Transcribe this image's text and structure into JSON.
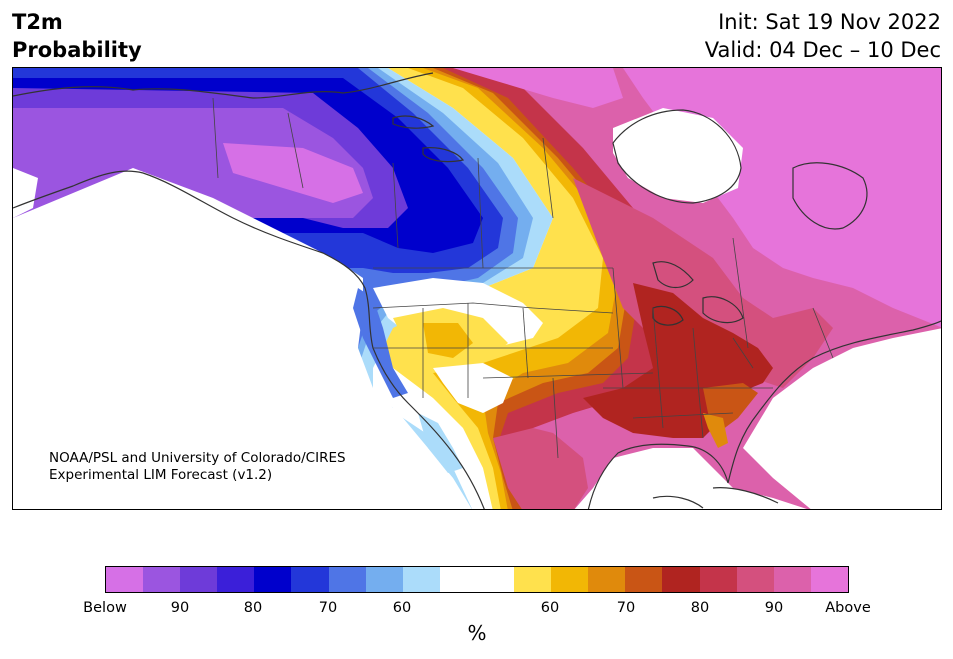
{
  "title": {
    "variable": "T2m",
    "subtitle": "Probability",
    "init": "Init: Sat 19 Nov 2022",
    "valid": "Valid: 04 Dec – 10 Dec"
  },
  "credit": {
    "line1": "NOAA/PSL and University of Colorado/CIRES",
    "line2": "Experimental LIM Forecast (v1.2)"
  },
  "colorbar": {
    "units": "%",
    "colors": [
      "#d670e6",
      "#9b55e0",
      "#6e3bd9",
      "#3b1fd9",
      "#0000cc",
      "#2337d9",
      "#4f75e6",
      "#74aeef",
      "#abdcfa",
      "#ffffff",
      "#ffffff",
      "#ffe14d",
      "#f2b705",
      "#e08a0c",
      "#c95515",
      "#b02420",
      "#c4344a",
      "#d4507e",
      "#dc61ab",
      "#e674da"
    ],
    "ticks": [
      "Below",
      "90",
      "80",
      "70",
      "60",
      "60",
      "70",
      "80",
      "90",
      "Above"
    ]
  },
  "map": {
    "colors": {
      "land": "#ffffff",
      "coast": "#333333",
      "above_strong": "#e674da",
      "above_90": "#dc61ab",
      "above_80": "#d4507e",
      "above_70": "#c4344a",
      "above_60": "#b02420",
      "above_orange": "#c95515",
      "above_amber": "#e08a0c",
      "above_gold": "#f2b705",
      "above_yellow": "#ffe14d",
      "below_light": "#abdcfa",
      "below_60": "#74aeef",
      "below_65": "#4f75e6",
      "below_70": "#2337d9",
      "below_80": "#0000cc",
      "below_85": "#3b1fd9",
      "below_90": "#6e3bd9",
      "below_strong": "#9b55e0",
      "below_extreme": "#d670e6"
    }
  }
}
